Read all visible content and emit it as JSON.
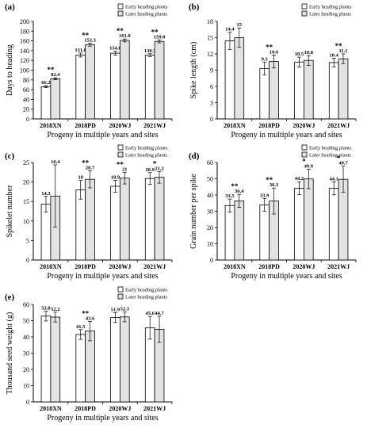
{
  "legend": [
    "Early heading plants",
    "Later heading plants"
  ],
  "chart_data": [
    {
      "type": "bar",
      "panel": "(a)",
      "ylabel": "Days to heading",
      "xlabel": "Progeny in multiple years and sites",
      "categories": [
        "2018XN",
        "2018PD",
        "2020WJ",
        "2021WJ"
      ],
      "ylim": [
        0,
        200
      ],
      "yticks": [
        0,
        20,
        40,
        60,
        80,
        100,
        120,
        140,
        160,
        180,
        200
      ],
      "series": [
        {
          "name": "Early heading plants",
          "values": [
            66.2,
            131.0,
            134.8,
            130.7
          ],
          "labels": [
            "66.2",
            "131.0",
            "134.8",
            "130.7"
          ],
          "err": [
            2,
            4,
            4,
            3
          ]
        },
        {
          "name": "Later heading plants",
          "values": [
            82.4,
            152.3,
            161.0,
            159.0
          ],
          "labels": [
            "82.4",
            "152.3",
            "161.0",
            "159.0"
          ],
          "err": [
            2,
            3,
            3,
            3
          ]
        }
      ],
      "significance": [
        "**",
        "**",
        "**",
        "**"
      ]
    },
    {
      "type": "bar",
      "panel": "(b)",
      "ylabel": "Spike length (cm)",
      "xlabel": "Progeny in multiple years and sites",
      "categories": [
        "2018XN",
        "2018PD",
        "2020WJ",
        "2021WJ"
      ],
      "ylim": [
        0,
        18
      ],
      "yticks": [
        0,
        3,
        6,
        9,
        12,
        15,
        18
      ],
      "series": [
        {
          "name": "Early heading plants",
          "values": [
            14.4,
            9.3,
            10.5,
            10.4
          ],
          "labels": [
            "14.4",
            "9.3",
            "10.5",
            "10.4"
          ],
          "err": [
            1.6,
            1.2,
            0.9,
            0.8
          ]
        },
        {
          "name": "Later heading plants",
          "values": [
            15.0,
            10.6,
            10.8,
            11.1
          ],
          "labels": [
            "15",
            "10.6",
            "10.8",
            "11.1"
          ],
          "err": [
            1.8,
            1.2,
            0.9,
            0.9
          ]
        }
      ],
      "significance": [
        "",
        "**",
        "",
        "**"
      ]
    },
    {
      "type": "bar",
      "panel": "(c)",
      "ylabel": "Spikelet number",
      "xlabel": "Progeny in multiple years and sites",
      "categories": [
        "2018XN",
        "2018PD",
        "2020WJ",
        "2021WJ"
      ],
      "ylim": [
        0,
        25
      ],
      "yticks": [
        0,
        5,
        10,
        15,
        20,
        25
      ],
      "series": [
        {
          "name": "Early heading plants",
          "values": [
            14.3,
            18.0,
            18.9,
            20.9
          ],
          "labels": [
            "14.3",
            "18",
            "18.9",
            "20.9"
          ],
          "err": [
            2.0,
            2.4,
            1.5,
            1.5
          ]
        },
        {
          "name": "Later heading plants",
          "values": [
            16.4,
            20.7,
            21.0,
            21.2
          ],
          "labels": [
            "16.4",
            "20.7",
            "21",
            "21.2"
          ],
          "err": [
            8.0,
            2.2,
            1.5,
            1.5
          ]
        }
      ],
      "significance": [
        "",
        "**",
        "**",
        "*"
      ]
    },
    {
      "type": "bar",
      "panel": "(d)",
      "ylabel": "Grain number per spike",
      "xlabel": "Progeny in multiple years and sites",
      "categories": [
        "2018XN",
        "2018PD",
        "2020WJ",
        "2021WJ"
      ],
      "ylim": [
        0,
        60
      ],
      "yticks": [
        0,
        10,
        20,
        30,
        40,
        50,
        60
      ],
      "series": [
        {
          "name": "Early heading plants",
          "values": [
            33.5,
            33.9,
            44.2,
            44.1
          ],
          "labels": [
            "33.5",
            "33.9",
            "44.2",
            "44.1"
          ],
          "err": [
            4,
            4,
            4,
            4
          ]
        },
        {
          "name": "Later heading plants",
          "values": [
            36.4,
            36.3,
            49.9,
            49.7
          ],
          "labels": [
            "36.4",
            "36.3",
            "49.9",
            "49.7"
          ],
          "err": [
            4,
            8,
            6,
            8
          ]
        }
      ],
      "significance": [
        "**",
        "**",
        "*",
        "*"
      ]
    },
    {
      "type": "bar",
      "panel": "(e)",
      "ylabel": "Thousand seed weight (g)",
      "xlabel": "Progeny in multiple years and sites",
      "categories": [
        "2018XN",
        "2018PD",
        "2020WJ",
        "2021WJ"
      ],
      "ylim": [
        0,
        60
      ],
      "yticks": [
        0,
        10,
        20,
        30,
        40,
        50,
        60
      ],
      "series": [
        {
          "name": "Early heading plants",
          "values": [
            52.8,
            41.5,
            51.9,
            45.6
          ],
          "labels": [
            "52.8",
            "41.5",
            "51.9",
            "45.6"
          ],
          "err": [
            3,
            3,
            3,
            7
          ]
        },
        {
          "name": "Later heading plants",
          "values": [
            52.2,
            43.6,
            52.3,
            44.7
          ],
          "labels": [
            "52.2",
            "43.6",
            "52.3",
            "44.7"
          ],
          "err": [
            3,
            6,
            3,
            8
          ]
        }
      ],
      "significance": [
        "",
        "**",
        "",
        ""
      ]
    }
  ]
}
